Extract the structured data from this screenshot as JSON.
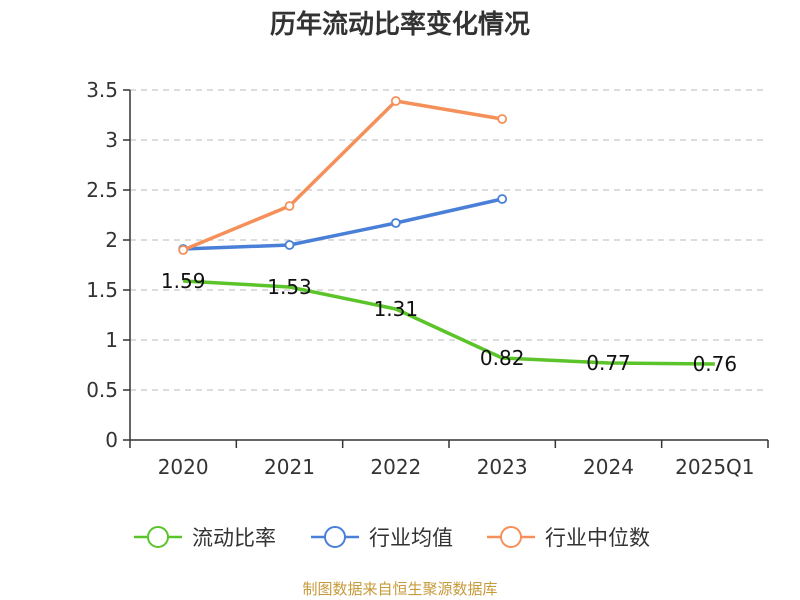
{
  "chart_data": {
    "type": "line",
    "title": "历年流动比率变化情况",
    "categories": [
      "2020",
      "2021",
      "2022",
      "2023",
      "2024",
      "2025Q1"
    ],
    "ylim": [
      0,
      3.5
    ],
    "yticks": [
      0,
      0.5,
      1,
      1.5,
      2,
      2.5,
      3,
      3.5
    ],
    "ytick_labels": [
      "0",
      "0.5",
      "1",
      "1.5",
      "2",
      "2.5",
      "3",
      "3.5"
    ],
    "grid": true,
    "legend_position": "bottom",
    "series": [
      {
        "name": "流动比率",
        "color": "#5cc42b",
        "values": [
          1.59,
          1.53,
          1.31,
          0.82,
          0.77,
          0.76
        ],
        "labels": [
          "1.59",
          "1.53",
          "1.31",
          "0.82",
          "0.77",
          "0.76"
        ],
        "show_labels": true,
        "show_markers": false
      },
      {
        "name": "行业均值",
        "color": "#4a7fd8",
        "values": [
          1.91,
          1.95,
          2.17,
          2.41,
          null,
          null
        ],
        "show_labels": false,
        "show_markers": true
      },
      {
        "name": "行业中位数",
        "color": "#f6905a",
        "values": [
          1.9,
          2.34,
          3.39,
          3.21,
          null,
          null
        ],
        "show_labels": false,
        "show_markers": true
      }
    ]
  },
  "footer": {
    "source": "制图数据来自恒生聚源数据库"
  }
}
